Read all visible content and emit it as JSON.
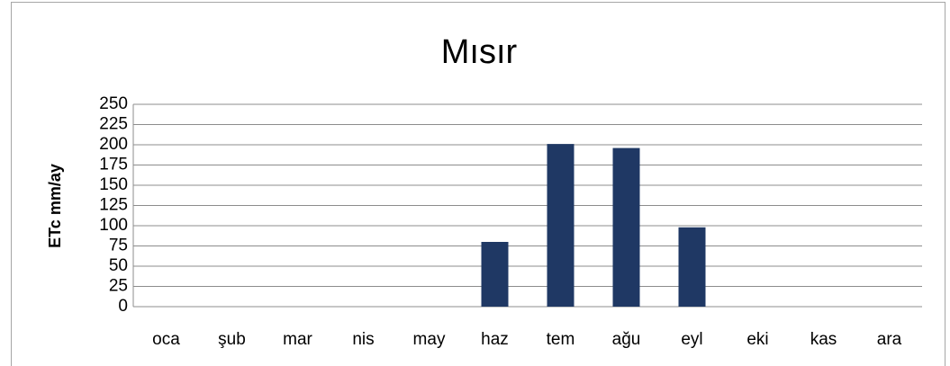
{
  "chart_data": {
    "type": "bar",
    "title": "Mısır",
    "y_label": "ETc mm/ay",
    "categories": [
      "oca",
      "şub",
      "mar",
      "nis",
      "may",
      "haz",
      "tem",
      "ağu",
      "eyl",
      "eki",
      "kas",
      "ara"
    ],
    "values": [
      0,
      0,
      0,
      0,
      0,
      80,
      201,
      196,
      98,
      0,
      0,
      0
    ],
    "color": "#1f3864",
    "ylim": [
      0,
      250
    ],
    "yticks": [
      0,
      25,
      50,
      75,
      100,
      125,
      150,
      175,
      200,
      225,
      250
    ],
    "grid": true
  }
}
